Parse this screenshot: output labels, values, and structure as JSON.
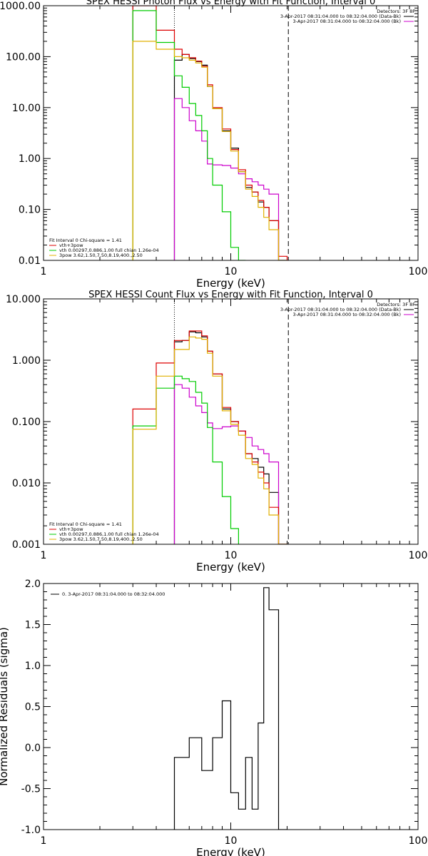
{
  "chart_data": [
    {
      "type": "line",
      "title": "SPEX HESSI Photon Flux vs Energy with Fit Function, Interval 0",
      "xlabel": "Energy (keV)",
      "ylabel": "",
      "xscale": "log",
      "yscale": "log",
      "xlim": [
        1,
        100
      ],
      "ylim": [
        0.01,
        1000
      ],
      "xticks": [
        "1",
        "10",
        "100"
      ],
      "yticks": [
        "0.01",
        "0.10",
        "1.00",
        "10.00",
        "100.00",
        "1000.00"
      ],
      "vlines": [
        {
          "x": 5,
          "style": "dotted"
        },
        {
          "x": 20.3,
          "style": "dashed"
        }
      ],
      "legend_top": {
        "header": "Detectors: 3F 8F",
        "entries": [
          {
            "label": "3-Apr-2017 08:31:04.000 to 08:32:04.000 (Data-Bk)",
            "color": "#000000"
          },
          {
            "label": "3-Apr-2017 08:31:04.000 to 08:32:04.000 (Bk)",
            "color": "#cc00cc"
          }
        ]
      },
      "legend_bottom": {
        "header": "Fit Interval 0   Chi-square = 1.41",
        "entries": [
          {
            "label": "vth+3pow",
            "color": "#dd0000"
          },
          {
            "label": "vth 0.00297,0.886,1.00  full chian 1.26e-04",
            "color": "#00cc00"
          },
          {
            "label": "3pow 3.62,1.50,7.50,8.19,400.,2.50",
            "color": "#e0b000"
          }
        ]
      },
      "edges": [
        3.0,
        3.5,
        4.0,
        4.5,
        5.0,
        5.5,
        6.0,
        6.5,
        7.0,
        7.5,
        8.0,
        9.0,
        10.0,
        11.0,
        12.0,
        13.0,
        14.0,
        15.0,
        16.0,
        18.0,
        20.0,
        22.0
      ],
      "series": [
        {
          "color": "#000000",
          "values": [
            null,
            null,
            null,
            null,
            85,
            110,
            92,
            80,
            68,
            26,
            9.5,
            3.5,
            1.6,
            0.55,
            0.27,
            0.22,
            0.14,
            0.11,
            0.06,
            0.01,
            null
          ]
        },
        {
          "color": "#cc00cc",
          "values": [
            null,
            null,
            null,
            null,
            15,
            10,
            5.5,
            3.5,
            2.2,
            0.78,
            0.75,
            0.73,
            0.65,
            0.5,
            0.4,
            0.35,
            0.3,
            0.25,
            0.2,
            null,
            null
          ]
        },
        {
          "color": "#dd0000",
          "values": [
            1000,
            1000,
            330,
            330,
            140,
            110,
            95,
            82,
            65,
            28,
            10,
            3.8,
            1.5,
            0.6,
            0.3,
            0.22,
            0.15,
            0.11,
            0.06,
            0.012,
            null
          ]
        },
        {
          "color": "#00cc00",
          "values": [
            800,
            800,
            190,
            190,
            42,
            25,
            12,
            7,
            3.5,
            1.0,
            0.3,
            0.09,
            0.018,
            0.005,
            null,
            null,
            null,
            null,
            null,
            null,
            null
          ]
        },
        {
          "color": "#e0b000",
          "values": [
            200,
            200,
            140,
            140,
            100,
            95,
            85,
            75,
            62,
            26,
            9.5,
            3.4,
            1.4,
            0.55,
            0.25,
            0.18,
            0.11,
            0.07,
            0.04,
            0.008,
            null
          ]
        }
      ]
    },
    {
      "type": "line",
      "title": "SPEX HESSI Count Flux vs Energy with Fit Function, Interval 0",
      "xlabel": "Energy (keV)",
      "ylabel": "",
      "xscale": "log",
      "yscale": "log",
      "xlim": [
        1,
        100
      ],
      "ylim": [
        0.001,
        10
      ],
      "xticks": [
        "1",
        "10",
        "100"
      ],
      "yticks": [
        "0.001",
        "0.010",
        "0.100",
        "1.000",
        "10.000"
      ],
      "vlines": [
        {
          "x": 5,
          "style": "dotted"
        },
        {
          "x": 20.3,
          "style": "dashed"
        }
      ],
      "legend_top": {
        "header": "Detectors: 3F 8F",
        "entries": [
          {
            "label": "3-Apr-2017 08:31:04.000 to 08:32:04.000 (Data-Bk)",
            "color": "#000000"
          },
          {
            "label": "3-Apr-2017 08:31:04.000 to 08:32:04.000 (Bk)",
            "color": "#cc00cc"
          }
        ]
      },
      "legend_bottom": {
        "header": "Fit Interval 0   Chi-square = 1.41",
        "entries": [
          {
            "label": "vth+3pow",
            "color": "#dd0000"
          },
          {
            "label": "vth 0.00297,0.886,1.00  full chian 1.26e-04",
            "color": "#00cc00"
          },
          {
            "label": "3pow 3.62,1.50,7.50,8.19,400.,2.50",
            "color": "#e0b000"
          }
        ]
      },
      "edges": [
        3.0,
        3.5,
        4.0,
        4.5,
        5.0,
        5.5,
        6.0,
        6.5,
        7.0,
        7.5,
        8.0,
        9.0,
        10.0,
        11.0,
        12.0,
        13.0,
        14.0,
        15.0,
        16.0,
        18.0,
        20.0,
        22.0
      ],
      "series": [
        {
          "color": "#000000",
          "values": [
            null,
            null,
            null,
            null,
            2.0,
            2.1,
            2.9,
            2.8,
            2.4,
            1.4,
            0.6,
            0.16,
            0.1,
            0.07,
            0.03,
            0.025,
            0.018,
            0.014,
            0.007,
            0.001,
            null
          ]
        },
        {
          "color": "#cc00cc",
          "values": [
            null,
            null,
            null,
            null,
            0.4,
            0.35,
            0.25,
            0.18,
            0.14,
            0.095,
            0.077,
            0.082,
            0.085,
            0.07,
            0.055,
            0.04,
            0.035,
            0.03,
            0.022,
            null,
            null
          ]
        },
        {
          "color": "#dd0000",
          "values": [
            0.16,
            0.16,
            0.9,
            0.9,
            2.1,
            2.1,
            3.0,
            3.0,
            2.5,
            1.4,
            0.6,
            0.17,
            0.1,
            0.07,
            0.03,
            0.022,
            0.015,
            0.01,
            0.004,
            0.001,
            null
          ]
        },
        {
          "color": "#00cc00",
          "values": [
            0.085,
            0.085,
            0.35,
            0.35,
            0.55,
            0.5,
            0.45,
            0.3,
            0.2,
            0.08,
            0.022,
            0.006,
            0.0018,
            null,
            null,
            null,
            null,
            null,
            null,
            null,
            null
          ]
        },
        {
          "color": "#e0b000",
          "values": [
            0.075,
            0.075,
            0.55,
            0.55,
            1.5,
            1.5,
            2.4,
            2.3,
            2.2,
            1.3,
            0.55,
            0.15,
            0.09,
            0.06,
            0.025,
            0.02,
            0.012,
            0.008,
            0.003,
            0.001,
            null
          ]
        }
      ]
    },
    {
      "type": "line",
      "title": "",
      "xlabel": "Energy (keV)",
      "ylabel": "Normalized Residuals (sigma)",
      "xscale": "log",
      "yscale": "linear",
      "xlim": [
        1,
        100
      ],
      "ylim": [
        -1.0,
        2.0
      ],
      "xticks": [
        "1",
        "10",
        "100"
      ],
      "yticks": [
        "-1.0",
        "-0.5",
        "0.0",
        "0.5",
        "1.0",
        "1.5",
        "2.0"
      ],
      "legend_top": {
        "header": "",
        "entries": [
          {
            "label": "0.  3-Apr-2017 08:31:04.000 to 08:32:04.000",
            "color": "#000000"
          }
        ]
      },
      "edges": [
        5.0,
        6.0,
        7.0,
        8.0,
        9.0,
        10.0,
        11.0,
        12.0,
        13.0,
        14.0,
        15.0,
        16.0,
        18.0,
        20.0
      ],
      "series": [
        {
          "color": "#000000",
          "values": [
            -0.12,
            0.12,
            -0.28,
            0.12,
            0.57,
            -0.55,
            -0.75,
            -0.12,
            -0.75,
            0.3,
            1.95,
            1.68,
            -1.0
          ]
        }
      ]
    }
  ]
}
